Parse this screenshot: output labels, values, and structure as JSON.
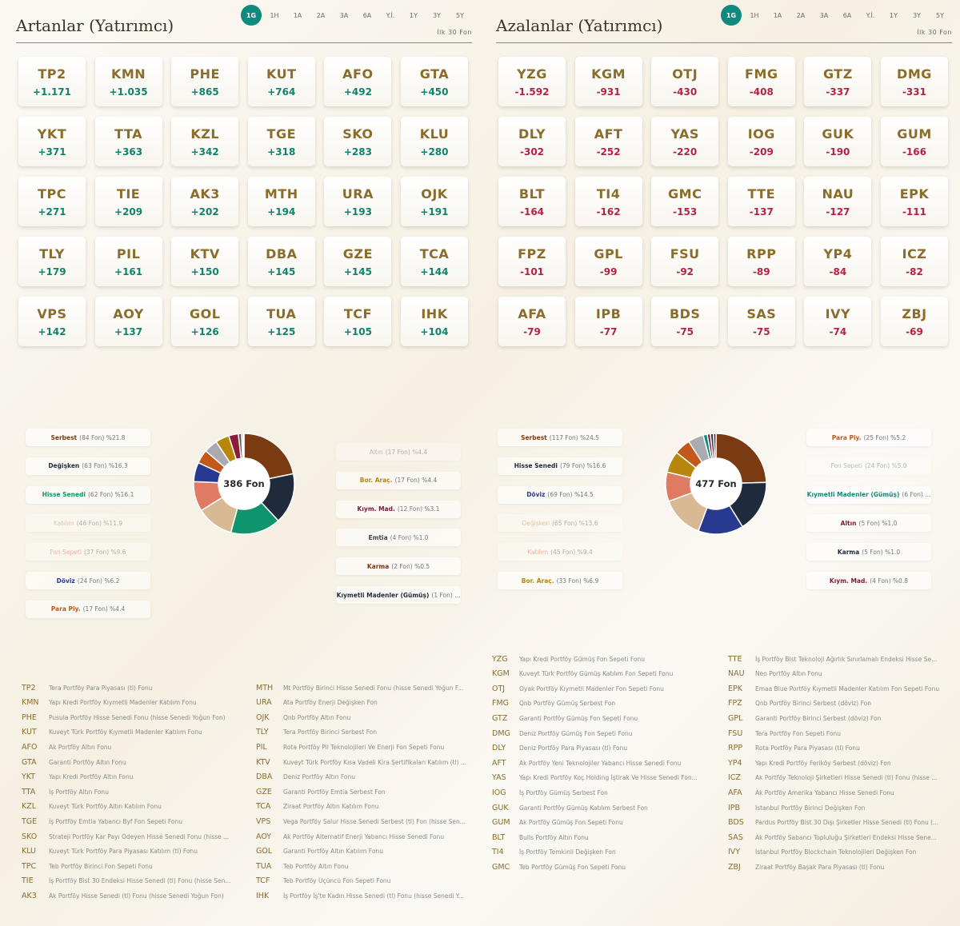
{
  "periods": [
    "1G",
    "1H",
    "1A",
    "2A",
    "3A",
    "6A",
    "Y.İ.",
    "1Y",
    "3Y",
    "5Y"
  ],
  "active_period": "1G",
  "colors": {
    "accent": "#0f8a7e",
    "positive": "#11836a",
    "negative": "#b52247",
    "code": "#8a6d2b"
  },
  "left": {
    "title": "Artanlar (Yatırımcı)",
    "top_label": "İlk 30 Fon",
    "cards": [
      {
        "code": "TP2",
        "value": "+1.171"
      },
      {
        "code": "KMN",
        "value": "+1.035"
      },
      {
        "code": "PHE",
        "value": "+865"
      },
      {
        "code": "KUT",
        "value": "+764"
      },
      {
        "code": "AFO",
        "value": "+492"
      },
      {
        "code": "GTA",
        "value": "+450"
      },
      {
        "code": "YKT",
        "value": "+371"
      },
      {
        "code": "TTA",
        "value": "+363"
      },
      {
        "code": "KZL",
        "value": "+342"
      },
      {
        "code": "TGE",
        "value": "+318"
      },
      {
        "code": "SKO",
        "value": "+283"
      },
      {
        "code": "KLU",
        "value": "+280"
      },
      {
        "code": "TPC",
        "value": "+271"
      },
      {
        "code": "TIE",
        "value": "+209"
      },
      {
        "code": "AK3",
        "value": "+202"
      },
      {
        "code": "MTH",
        "value": "+194"
      },
      {
        "code": "URA",
        "value": "+193"
      },
      {
        "code": "OJK",
        "value": "+191"
      },
      {
        "code": "TLY",
        "value": "+179"
      },
      {
        "code": "PIL",
        "value": "+161"
      },
      {
        "code": "KTV",
        "value": "+150"
      },
      {
        "code": "DBA",
        "value": "+145"
      },
      {
        "code": "GZE",
        "value": "+145"
      },
      {
        "code": "TCA",
        "value": "+144"
      },
      {
        "code": "VPS",
        "value": "+142"
      },
      {
        "code": "AOY",
        "value": "+137"
      },
      {
        "code": "GOL",
        "value": "+126"
      },
      {
        "code": "TUA",
        "value": "+125"
      },
      {
        "code": "TCF",
        "value": "+105"
      },
      {
        "code": "IHK",
        "value": "+104"
      }
    ],
    "donut_center": "386 Fon",
    "legend_left": [
      {
        "name": "Serbest",
        "detail": "(84 Fon) %21.8",
        "color": "#7a3b12",
        "faded": false
      },
      {
        "name": "Değişken",
        "detail": "(63 Fon) %16.3",
        "color": "#1f2a3c",
        "faded": false
      },
      {
        "name": "Hisse Senedi",
        "detail": "(62 Fon) %16.1",
        "color": "#10946e",
        "faded": false
      },
      {
        "name": "Katılım",
        "detail": "(46 Fon) %11.9",
        "color": "#c9a27a",
        "faded": true
      },
      {
        "name": "Fon Sepeti",
        "detail": "(37 Fon) %9.6",
        "color": "#e07b63",
        "faded": true
      },
      {
        "name": "Döviz",
        "detail": "(24 Fon) %6.2",
        "color": "#273a8f",
        "faded": false
      },
      {
        "name": "Para Piy.",
        "detail": "(17 Fon) %4.4",
        "color": "#c2581a",
        "faded": false
      }
    ],
    "legend_right": [
      {
        "name": "Altın",
        "detail": "(17 Fon) %4.4",
        "color": "#8e8e8e",
        "faded": true
      },
      {
        "name": "Bor. Araç.",
        "detail": "(17 Fon) %4.4",
        "color": "#b8860b",
        "faded": false
      },
      {
        "name": "Kıym. Mad.",
        "detail": "(12 Fon) %3.1",
        "color": "#7d1a33",
        "faded": false
      },
      {
        "name": "Emtia",
        "detail": "(4 Fon) %1.0",
        "color": "#444",
        "faded": false
      },
      {
        "name": "Karma",
        "detail": "(2 Fon) %0.5",
        "color": "#7a3b12",
        "faded": false
      },
      {
        "name": "Kıymetli Madenler (Gümüş)",
        "detail": "(1 Fon) ...",
        "color": "#1f2a3c",
        "faded": false
      }
    ],
    "chart_data": {
      "type": "pie",
      "categories": [
        "Serbest",
        "Değişken",
        "Hisse Senedi",
        "Katılım",
        "Fon Sepeti",
        "Döviz",
        "Para Piy.",
        "Altın",
        "Bor. Araç.",
        "Kıym. Mad.",
        "Emtia",
        "Karma",
        "Kıymetli Madenler (Gümüş)"
      ],
      "values": [
        21.8,
        16.3,
        16.1,
        11.9,
        9.6,
        6.2,
        4.4,
        4.4,
        4.4,
        3.1,
        1.0,
        0.5,
        0.3
      ],
      "colors": [
        "#7a3b12",
        "#1f2a3c",
        "#10946e",
        "#d9b894",
        "#e07b63",
        "#273a8f",
        "#c2581a",
        "#a9abb0",
        "#b8860b",
        "#8b1d3b",
        "#555555",
        "#9c3a2a",
        "#2f3f5c"
      ]
    },
    "funds_col1": [
      {
        "code": "TP2",
        "name": "Tera Portföy Para Piyasası (tl) Fonu"
      },
      {
        "code": "KMN",
        "name": "Yapı Kredi Portföy Kıymetli Madenler Katılım Fonu"
      },
      {
        "code": "PHE",
        "name": "Pusula Portföy Hisse Senedi Fonu (hisse Senedi Yoğun Fon)"
      },
      {
        "code": "KUT",
        "name": "Kuveyt Türk Portföy Kıymetli Madenler Katılım Fonu"
      },
      {
        "code": "AFO",
        "name": "Ak Portföy Altın Fonu"
      },
      {
        "code": "GTA",
        "name": "Garanti Portföy Altın Fonu"
      },
      {
        "code": "YKT",
        "name": "Yapı Kredi Portföy Altın Fonu"
      },
      {
        "code": "TTA",
        "name": "İş Portföy Altın Fonu"
      },
      {
        "code": "KZL",
        "name": "Kuveyt Türk Portföy Altın Katılım Fonu"
      },
      {
        "code": "TGE",
        "name": "İş Portföy Emtia Yabancı Byf Fon Sepeti Fonu"
      },
      {
        "code": "SKO",
        "name": "Strateji Portföy Kar Payı Ödeyen Hisse Senedi Fonu (hisse ..."
      },
      {
        "code": "KLU",
        "name": "Kuveyt Türk Portföy Para Piyasası Katılım (tl) Fonu"
      },
      {
        "code": "TPC",
        "name": "Teb Portföy Birinci Fon Sepeti Fonu"
      },
      {
        "code": "TIE",
        "name": "İş Portföy Bist 30 Endeksi Hisse Senedi (tl) Fonu (hisse Sen..."
      },
      {
        "code": "AK3",
        "name": "Ak Portföy Hisse Senedi (tl) Fonu (hisse Senedi Yoğun Fon)"
      }
    ],
    "funds_col2": [
      {
        "code": "MTH",
        "name": "Mt Portföy Birinci Hisse Senedi Fonu (hisse Senedi Yoğun F..."
      },
      {
        "code": "URA",
        "name": "Ata Portföy Enerji Değişken Fon"
      },
      {
        "code": "OJK",
        "name": "Qnb Portföy Altın Fonu"
      },
      {
        "code": "TLY",
        "name": "Tera Portföy Birinci Serbest Fon"
      },
      {
        "code": "PIL",
        "name": "Rota Portföy Pil Teknolojileri Ve Enerji Fon Sepeti Fonu"
      },
      {
        "code": "KTV",
        "name": "Kuveyt Türk Portföy Kısa Vadeli Kira Sertifikaları Katılım (tl) ..."
      },
      {
        "code": "DBA",
        "name": "Deniz Portföy Altın Fonu"
      },
      {
        "code": "GZE",
        "name": "Garanti Portföy Emtia Serbest Fon"
      },
      {
        "code": "TCA",
        "name": "Ziraat Portföy Altın Katılım Fonu"
      },
      {
        "code": "VPS",
        "name": "Vega Portföy Salur Hisse Senedi Serbest (tl) Fon (hisse Sen..."
      },
      {
        "code": "AOY",
        "name": "Ak Portföy Alternatif Enerji Yabancı Hisse Senedi Fonu"
      },
      {
        "code": "GOL",
        "name": "Garanti Portföy Altın Katılım Fonu"
      },
      {
        "code": "TUA",
        "name": "Teb Portföy Altın Fonu"
      },
      {
        "code": "TCF",
        "name": "Teb Portföy Üçüncü Fon Sepeti Fonu"
      },
      {
        "code": "IHK",
        "name": "İş Portföy İş'te Kadın Hisse Senedi (tl) Fonu (hisse Senedi Y..."
      }
    ]
  },
  "right": {
    "title": "Azalanlar (Yatırımcı)",
    "top_label": "İlk 30 Fon",
    "cards": [
      {
        "code": "YZG",
        "value": "-1.592"
      },
      {
        "code": "KGM",
        "value": "-931"
      },
      {
        "code": "OTJ",
        "value": "-430"
      },
      {
        "code": "FMG",
        "value": "-408"
      },
      {
        "code": "GTZ",
        "value": "-337"
      },
      {
        "code": "DMG",
        "value": "-331"
      },
      {
        "code": "DLY",
        "value": "-302"
      },
      {
        "code": "AFT",
        "value": "-252"
      },
      {
        "code": "YAS",
        "value": "-220"
      },
      {
        "code": "IOG",
        "value": "-209"
      },
      {
        "code": "GUK",
        "value": "-190"
      },
      {
        "code": "GUM",
        "value": "-166"
      },
      {
        "code": "BLT",
        "value": "-164"
      },
      {
        "code": "TI4",
        "value": "-162"
      },
      {
        "code": "GMC",
        "value": "-153"
      },
      {
        "code": "TTE",
        "value": "-137"
      },
      {
        "code": "NAU",
        "value": "-127"
      },
      {
        "code": "EPK",
        "value": "-111"
      },
      {
        "code": "FPZ",
        "value": "-101"
      },
      {
        "code": "GPL",
        "value": "-99"
      },
      {
        "code": "FSU",
        "value": "-92"
      },
      {
        "code": "RPP",
        "value": "-89"
      },
      {
        "code": "YP4",
        "value": "-84"
      },
      {
        "code": "ICZ",
        "value": "-82"
      },
      {
        "code": "AFA",
        "value": "-79"
      },
      {
        "code": "IPB",
        "value": "-77"
      },
      {
        "code": "BDS",
        "value": "-75"
      },
      {
        "code": "SAS",
        "value": "-75"
      },
      {
        "code": "IVY",
        "value": "-74"
      },
      {
        "code": "ZBJ",
        "value": "-69"
      }
    ],
    "donut_center": "477 Fon",
    "legend_left": [
      {
        "name": "Serbest",
        "detail": "(117 Fon) %24.5",
        "color": "#7a3b12",
        "faded": false
      },
      {
        "name": "Hisse Senedi",
        "detail": "(79 Fon) %16.6",
        "color": "#1f2a3c",
        "faded": false
      },
      {
        "name": "Döviz",
        "detail": "(69 Fon) %14.5",
        "color": "#273a8f",
        "faded": false
      },
      {
        "name": "Değişken",
        "detail": "(65 Fon) %13.6",
        "color": "#c9a27a",
        "faded": true
      },
      {
        "name": "Katılım",
        "detail": "(45 Fon) %9.4",
        "color": "#e07b63",
        "faded": true
      },
      {
        "name": "Bor. Araç.",
        "detail": "(33 Fon) %6.9",
        "color": "#b8860b",
        "faded": false
      }
    ],
    "legend_right": [
      {
        "name": "Para Piy.",
        "detail": "(25 Fon) %5.2",
        "color": "#c2581a",
        "faded": false
      },
      {
        "name": "Fon Sepeti",
        "detail": "(24 Fon) %5.0",
        "color": "#8e8e8e",
        "faded": true
      },
      {
        "name": "Kıymetli Madenler (Gümüş)",
        "detail": "(6 Fon) ...",
        "color": "#0f8a7e",
        "faded": false
      },
      {
        "name": "Altın",
        "detail": "(5 Fon) %1.0",
        "color": "#7d1a33",
        "faded": false
      },
      {
        "name": "Karma",
        "detail": "(5 Fon) %1.0",
        "color": "#1f2a3c",
        "faded": false
      },
      {
        "name": "Kıym. Mad.",
        "detail": "(4 Fon) %0.8",
        "color": "#7d1a33",
        "faded": false
      }
    ],
    "chart_data": {
      "type": "pie",
      "categories": [
        "Serbest",
        "Hisse Senedi",
        "Döviz",
        "Değişken",
        "Katılım",
        "Bor. Araç.",
        "Para Piy.",
        "Fon Sepeti",
        "Kıymetli Madenler (Gümüş)",
        "Altın",
        "Karma",
        "Kıym. Mad."
      ],
      "values": [
        24.5,
        16.6,
        14.5,
        13.6,
        9.4,
        6.9,
        5.2,
        5.0,
        1.3,
        1.0,
        1.0,
        0.8
      ],
      "colors": [
        "#7a3b12",
        "#1f2a3c",
        "#273a8f",
        "#d9b894",
        "#e07b63",
        "#b8860b",
        "#c2581a",
        "#a9abb0",
        "#0f8a7e",
        "#8b1d3b",
        "#2f3f5c",
        "#6b1430"
      ]
    },
    "funds_col1": [
      {
        "code": "YZG",
        "name": "Yapı Kredi Portföy Gümüş Fon Sepeti Fonu"
      },
      {
        "code": "KGM",
        "name": "Kuveyt Türk Portföy Gümüş Katılım Fon Sepeti Fonu"
      },
      {
        "code": "OTJ",
        "name": "Oyak Portföy Kıymetli Madenler Fon Sepeti Fonu"
      },
      {
        "code": "FMG",
        "name": "Qnb Portföy Gümüş Serbest Fon"
      },
      {
        "code": "GTZ",
        "name": "Garanti Portföy Gümüş Fon Sepeti Fonu"
      },
      {
        "code": "DMG",
        "name": "Deniz Portföy Gümüş Fon Sepeti Fonu"
      },
      {
        "code": "DLY",
        "name": "Deniz Portföy Para Piyasası (tl) Fonu"
      },
      {
        "code": "AFT",
        "name": "Ak Portföy Yeni Teknolojiler Yabancı Hisse Senedi Fonu"
      },
      {
        "code": "YAS",
        "name": "Yapı Kredi Portföy Koç Holding İştirak Ve Hisse Senedi Fon..."
      },
      {
        "code": "IOG",
        "name": "İş Portföy Gümüş Serbest Fon"
      },
      {
        "code": "GUK",
        "name": "Garanti Portföy Gümüş Katılım Serbest Fon"
      },
      {
        "code": "GUM",
        "name": "Ak Portföy Gümüş Fon Sepeti Fonu"
      },
      {
        "code": "BLT",
        "name": "Bulls Portföy Altın Fonu"
      },
      {
        "code": "TI4",
        "name": "İş Portföy Temkinli Değişken Fon"
      },
      {
        "code": "GMC",
        "name": "Teb Portföy Gümüş Fon Sepeti Fonu"
      }
    ],
    "funds_col2": [
      {
        "code": "TTE",
        "name": "İş Portföy Bist Teknoloji Ağırlık Sınırlamalı Endeksi Hisse Se..."
      },
      {
        "code": "NAU",
        "name": "Neo Portföy Altın Fonu"
      },
      {
        "code": "EPK",
        "name": "Emaa Blue Portföy Kıymetli Madenler Katılım Fon Sepeti Fonu"
      },
      {
        "code": "FPZ",
        "name": "Qnb Portföy Birinci Serbest (döviz) Fon"
      },
      {
        "code": "GPL",
        "name": "Garanti Portföy Birinci Serbest (döviz) Fon"
      },
      {
        "code": "FSU",
        "name": "Tera Portföy Fon Sepeti Fonu"
      },
      {
        "code": "RPP",
        "name": "Rota Portföy Para Piyasası (tl) Fonu"
      },
      {
        "code": "YP4",
        "name": "Yapı Kredi Portföy Feriköy Serbest (döviz) Fon"
      },
      {
        "code": "ICZ",
        "name": "Ak Portföy Teknoloji Şirketleri Hisse Senedi (tl) Fonu (hisse ..."
      },
      {
        "code": "AFA",
        "name": "Ak Portföy Amerika Yabancı Hisse Senedi Fonu"
      },
      {
        "code": "IPB",
        "name": "İstanbul Portföy Birinci Değişken Fon"
      },
      {
        "code": "BDS",
        "name": "Pardus Portföy Bist 30 Dışı Şirketler Hisse Senedi (tl) Fonu (..."
      },
      {
        "code": "SAS",
        "name": "Ak Portföy Sabancı Topluluğu Şirketleri Endeksi Hisse Sene..."
      },
      {
        "code": "IVY",
        "name": "İstanbul Portföy Blockchain Teknolojileri Değişken Fon"
      },
      {
        "code": "ZBJ",
        "name": "Ziraat Portföy Başak Para Piyasası (tl) Fonu"
      }
    ]
  }
}
